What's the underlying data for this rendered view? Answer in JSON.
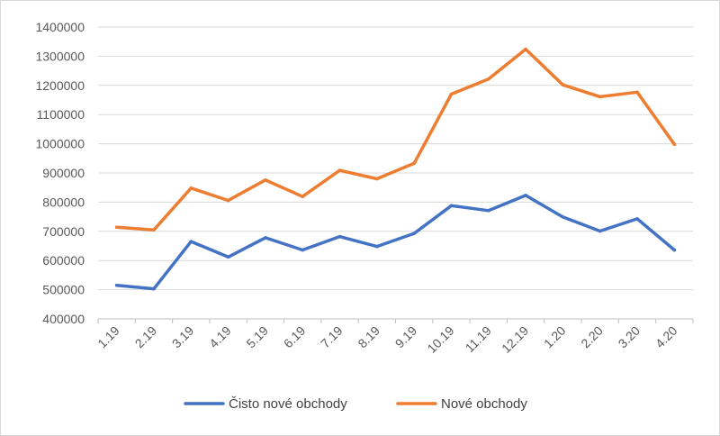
{
  "chart_data": {
    "type": "line",
    "title": "",
    "xlabel": "",
    "ylabel": "",
    "categories": [
      "1.19",
      "2.19",
      "3.19",
      "4.19",
      "5.19",
      "6.19",
      "7.19",
      "8.19",
      "9.19",
      "10.19",
      "11.19",
      "12.19",
      "1.20",
      "2.20",
      "3.20",
      "4.20"
    ],
    "ylim": [
      400000,
      1400000
    ],
    "yticks": [
      "400000",
      "500000",
      "600000",
      "700000",
      "800000",
      "900000",
      "1000000",
      "1100000",
      "1200000",
      "1300000",
      "1400000"
    ],
    "grid": true,
    "legend_position": "bottom",
    "series": [
      {
        "name": "Čisto nové obchody",
        "color": "#4472c4",
        "values": [
          515000,
          503000,
          665000,
          612000,
          678000,
          636000,
          682000,
          648000,
          693000,
          788000,
          771000,
          823000,
          749000,
          701000,
          743000,
          636000
        ]
      },
      {
        "name": "Nové obchody",
        "color": "#ed7d31",
        "values": [
          714000,
          705000,
          848000,
          806000,
          876000,
          819000,
          909000,
          880000,
          933000,
          1170000,
          1222000,
          1324000,
          1202000,
          1161000,
          1177000,
          998000
        ]
      }
    ]
  }
}
